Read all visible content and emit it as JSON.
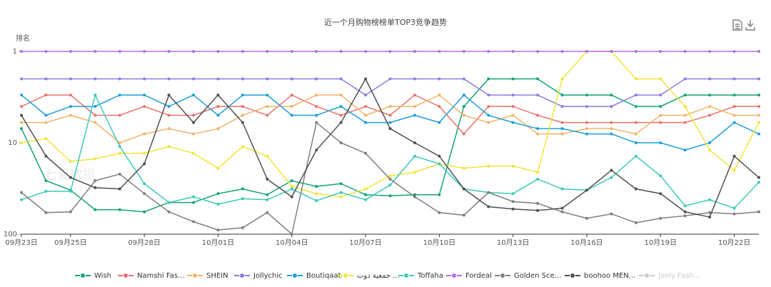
{
  "chart_data": {
    "type": "line",
    "title": "近一个月购物榜榜单TOP3竞争趋势",
    "y_axis_label": "排名",
    "watermark": "七麦数据",
    "log_scale": true,
    "inverse": true,
    "grid": false,
    "legend": "bottom",
    "categories": [
      "09月23日",
      null,
      "09月25日",
      null,
      null,
      "09月28日",
      null,
      null,
      "10月01日",
      null,
      null,
      "10月04日",
      null,
      null,
      "10月07日",
      null,
      null,
      "10月10日",
      null,
      null,
      "10月13日",
      null,
      null,
      "10月16日",
      null,
      null,
      "10月19日",
      null,
      null,
      "10月22日",
      null
    ],
    "ylim": [
      1,
      100
    ],
    "yticks": [
      1,
      10,
      100
    ],
    "series": [
      {
        "name": "Wish",
        "color": "#14a37b",
        "values": [
          7,
          26,
          33,
          54,
          54,
          57,
          45,
          45,
          36,
          32,
          37,
          26,
          30,
          28,
          37,
          38,
          37,
          37,
          4,
          2,
          2,
          2,
          3,
          3,
          3,
          4,
          4,
          3,
          3,
          3,
          3
        ]
      },
      {
        "name": "Namshi Fas...",
        "color": "#e8736c",
        "values": [
          4,
          3,
          3,
          5,
          5,
          4,
          5,
          5,
          4,
          4,
          5,
          3,
          4,
          5,
          4,
          5,
          3,
          4,
          8,
          4,
          4,
          5,
          6,
          6,
          6,
          6,
          6,
          6,
          5,
          4,
          4
        ]
      },
      {
        "name": "SHEIN",
        "color": "#f2b46b",
        "values": [
          6,
          6,
          5,
          6,
          10,
          8,
          7,
          8,
          7,
          5,
          4,
          4,
          3,
          3,
          5,
          4,
          4,
          3,
          5,
          6,
          5,
          8,
          8,
          7,
          7,
          8,
          5,
          5,
          4,
          5,
          5
        ]
      },
      {
        "name": "Jollychic",
        "color": "#8a7ee0",
        "values": [
          2,
          2,
          2,
          2,
          2,
          2,
          2,
          2,
          2,
          2,
          2,
          2,
          2,
          2,
          3,
          2,
          2,
          2,
          2,
          3,
          3,
          3,
          4,
          4,
          4,
          3,
          3,
          2,
          2,
          2,
          2
        ]
      },
      {
        "name": "Boutiqaat",
        "color": "#1d9fd8",
        "values": [
          3,
          5,
          4,
          4,
          3,
          3,
          4,
          3,
          5,
          3,
          3,
          5,
          5,
          4,
          6,
          6,
          5,
          6,
          3,
          5,
          6,
          7,
          7,
          8,
          8,
          10,
          10,
          12,
          10,
          6,
          8
        ]
      },
      {
        "name": "جمعية دوت ...",
        "color": "#f2e43a",
        "values": [
          10,
          9,
          16,
          15,
          13,
          13,
          11,
          13,
          19,
          11,
          14,
          30,
          36,
          39,
          32,
          23,
          21,
          17,
          19,
          18,
          18,
          21,
          2,
          1,
          1,
          2,
          2,
          4,
          12,
          20,
          6
        ]
      },
      {
        "name": "Toffaha",
        "color": "#3ec9bb",
        "values": [
          42,
          34,
          34,
          3,
          11,
          28,
          45,
          39,
          47,
          41,
          42,
          32,
          43,
          35,
          42,
          29,
          14,
          17,
          32,
          35,
          36,
          25,
          32,
          33,
          24,
          14,
          23,
          49,
          42,
          52,
          27
        ]
      },
      {
        "name": "Fordeal",
        "color": "#b36fe0",
        "values": [
          1,
          1,
          1,
          1,
          1,
          1,
          1,
          1,
          1,
          1,
          1,
          1,
          1,
          1,
          1,
          1,
          1,
          1,
          1,
          1,
          1,
          1,
          1,
          1,
          1,
          1,
          1,
          1,
          1,
          1,
          1
        ]
      },
      {
        "name": "Golden Sce...",
        "color": "#7f7f7f",
        "values": [
          35,
          58,
          57,
          26,
          22,
          36,
          57,
          73,
          90,
          85,
          58,
          100,
          6,
          10,
          13,
          25,
          39,
          58,
          62,
          35,
          44,
          46,
          57,
          67,
          60,
          75,
          67,
          63,
          58,
          60,
          57
        ]
      },
      {
        "name": "boohoo MEN...",
        "color": "#505050",
        "values": [
          5,
          14,
          24,
          31,
          32,
          17,
          3,
          6,
          3,
          6,
          25,
          39,
          12,
          6,
          2,
          7,
          10,
          14,
          32,
          50,
          53,
          55,
          52,
          33,
          20,
          32,
          36,
          57,
          65,
          14,
          24
        ]
      },
      {
        "name": "Jaely Fash...",
        "color": "#cccccc",
        "visible": false,
        "values": [
          null,
          null,
          null,
          null,
          null,
          null,
          null,
          null,
          null,
          null,
          null,
          null,
          null,
          null,
          null,
          null,
          null,
          null,
          null,
          null,
          null,
          null,
          null,
          null,
          null,
          null,
          null,
          null,
          null,
          null,
          null
        ]
      }
    ]
  }
}
